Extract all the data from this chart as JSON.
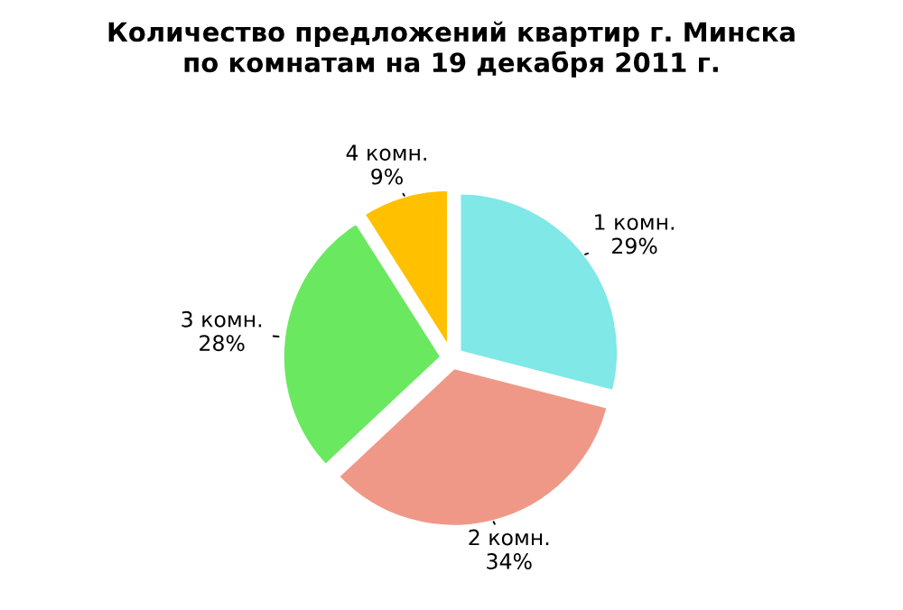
{
  "chart_data": {
    "type": "pie",
    "title": "Количество предложений квартир г. Минска\nпо комнатам на 19 декабря 2011 г.",
    "categories": [
      "1 комн.",
      "2 комн.",
      "3 комн.",
      "4 комн."
    ],
    "values": [
      29,
      34,
      28,
      9
    ],
    "value_labels": [
      "29%",
      "34%",
      "28%",
      "9%"
    ],
    "colors": [
      "#80e8e6",
      "#f09888",
      "#6ae860",
      "#ffc000"
    ]
  }
}
